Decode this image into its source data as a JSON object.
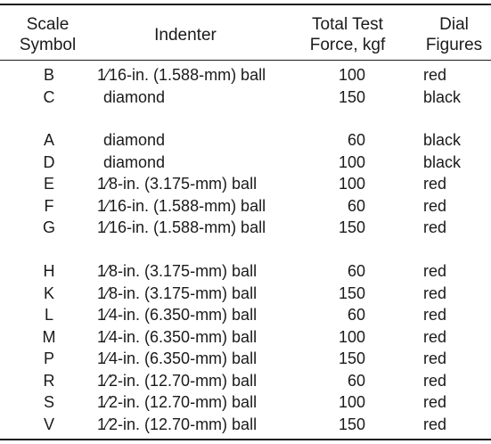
{
  "headers": {
    "scale_symbol": [
      "Scale",
      "Symbol"
    ],
    "indenter": "Indenter",
    "force": [
      "Total Test",
      "Force, kgf"
    ],
    "dial": [
      "Dial",
      "Figures"
    ]
  },
  "groups": [
    [
      {
        "symbol": "B",
        "indenter": "1⁄16-in. (1.588-mm) ball",
        "force": "100",
        "dial": "red"
      },
      {
        "symbol": "C",
        "indenter": "diamond",
        "force": "150",
        "dial": "black"
      }
    ],
    [
      {
        "symbol": "A",
        "indenter": "diamond",
        "force": "60",
        "dial": "black"
      },
      {
        "symbol": "D",
        "indenter": "diamond",
        "force": "100",
        "dial": "black"
      },
      {
        "symbol": "E",
        "indenter": "1⁄8-in. (3.175-mm) ball",
        "force": "100",
        "dial": "red"
      },
      {
        "symbol": "F",
        "indenter": "1⁄16-in. (1.588-mm) ball",
        "force": "60",
        "dial": "red"
      },
      {
        "symbol": "G",
        "indenter": "1⁄16-in. (1.588-mm) ball",
        "force": "150",
        "dial": "red"
      }
    ],
    [
      {
        "symbol": "H",
        "indenter": "1⁄8-in. (3.175-mm) ball",
        "force": "60",
        "dial": "red"
      },
      {
        "symbol": "K",
        "indenter": "1⁄8-in. (3.175-mm) ball",
        "force": "150",
        "dial": "red"
      },
      {
        "symbol": "L",
        "indenter": "1⁄4-in. (6.350-mm) ball",
        "force": "60",
        "dial": "red"
      },
      {
        "symbol": "M",
        "indenter": "1⁄4-in. (6.350-mm) ball",
        "force": "100",
        "dial": "red"
      },
      {
        "symbol": "P",
        "indenter": "1⁄4-in. (6.350-mm) ball",
        "force": "150",
        "dial": "red"
      },
      {
        "symbol": "R",
        "indenter": "1⁄2-in. (12.70-mm) ball",
        "force": "60",
        "dial": "red"
      },
      {
        "symbol": "S",
        "indenter": "1⁄2-in. (12.70-mm) ball",
        "force": "100",
        "dial": "red"
      },
      {
        "symbol": "V",
        "indenter": "1⁄2-in. (12.70-mm) ball",
        "force": "150",
        "dial": "red"
      }
    ]
  ]
}
